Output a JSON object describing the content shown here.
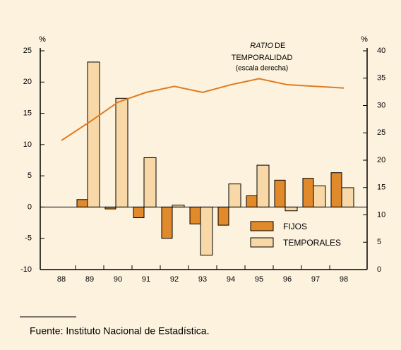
{
  "chart_data": {
    "type": "bar",
    "y_unit": "%",
    "y2_unit": "%",
    "annotation": [
      "RATIO",
      "DE",
      "TEMPORALIDAD",
      "(escala derecha)"
    ],
    "categories": [
      "88",
      "89",
      "90",
      "91",
      "92",
      "93",
      "94",
      "95",
      "96",
      "97",
      "98"
    ],
    "series": [
      {
        "name": "FIJOS",
        "color": "#e08a2c",
        "values": [
          null,
          1.2,
          -0.3,
          -1.7,
          -5.0,
          -2.7,
          -2.9,
          1.8,
          4.3,
          4.6,
          5.5
        ]
      },
      {
        "name": "TEMPORALES",
        "color": "#f9d8a8",
        "values": [
          null,
          23.2,
          17.4,
          7.9,
          0.3,
          -7.7,
          3.7,
          6.7,
          -0.6,
          3.4,
          3.1
        ]
      },
      {
        "name": "RATIO DE TEMPORALIDAD",
        "type": "line",
        "axis": "y2",
        "color": "#e07b20",
        "values": [
          23.6,
          27.0,
          30.6,
          32.4,
          33.5,
          32.4,
          33.8,
          34.9,
          33.8,
          33.5,
          33.2
        ]
      }
    ],
    "ylim": [
      -10,
      25
    ],
    "yticks": [
      -10,
      -5,
      0,
      5,
      10,
      15,
      20,
      25
    ],
    "y2lim": [
      0,
      40
    ],
    "y2ticks": [
      0,
      5,
      10,
      15,
      20,
      25,
      30,
      35,
      40
    ],
    "legend": "lower right",
    "source": "Fuente:  Instituto Nacional de Estadística."
  }
}
